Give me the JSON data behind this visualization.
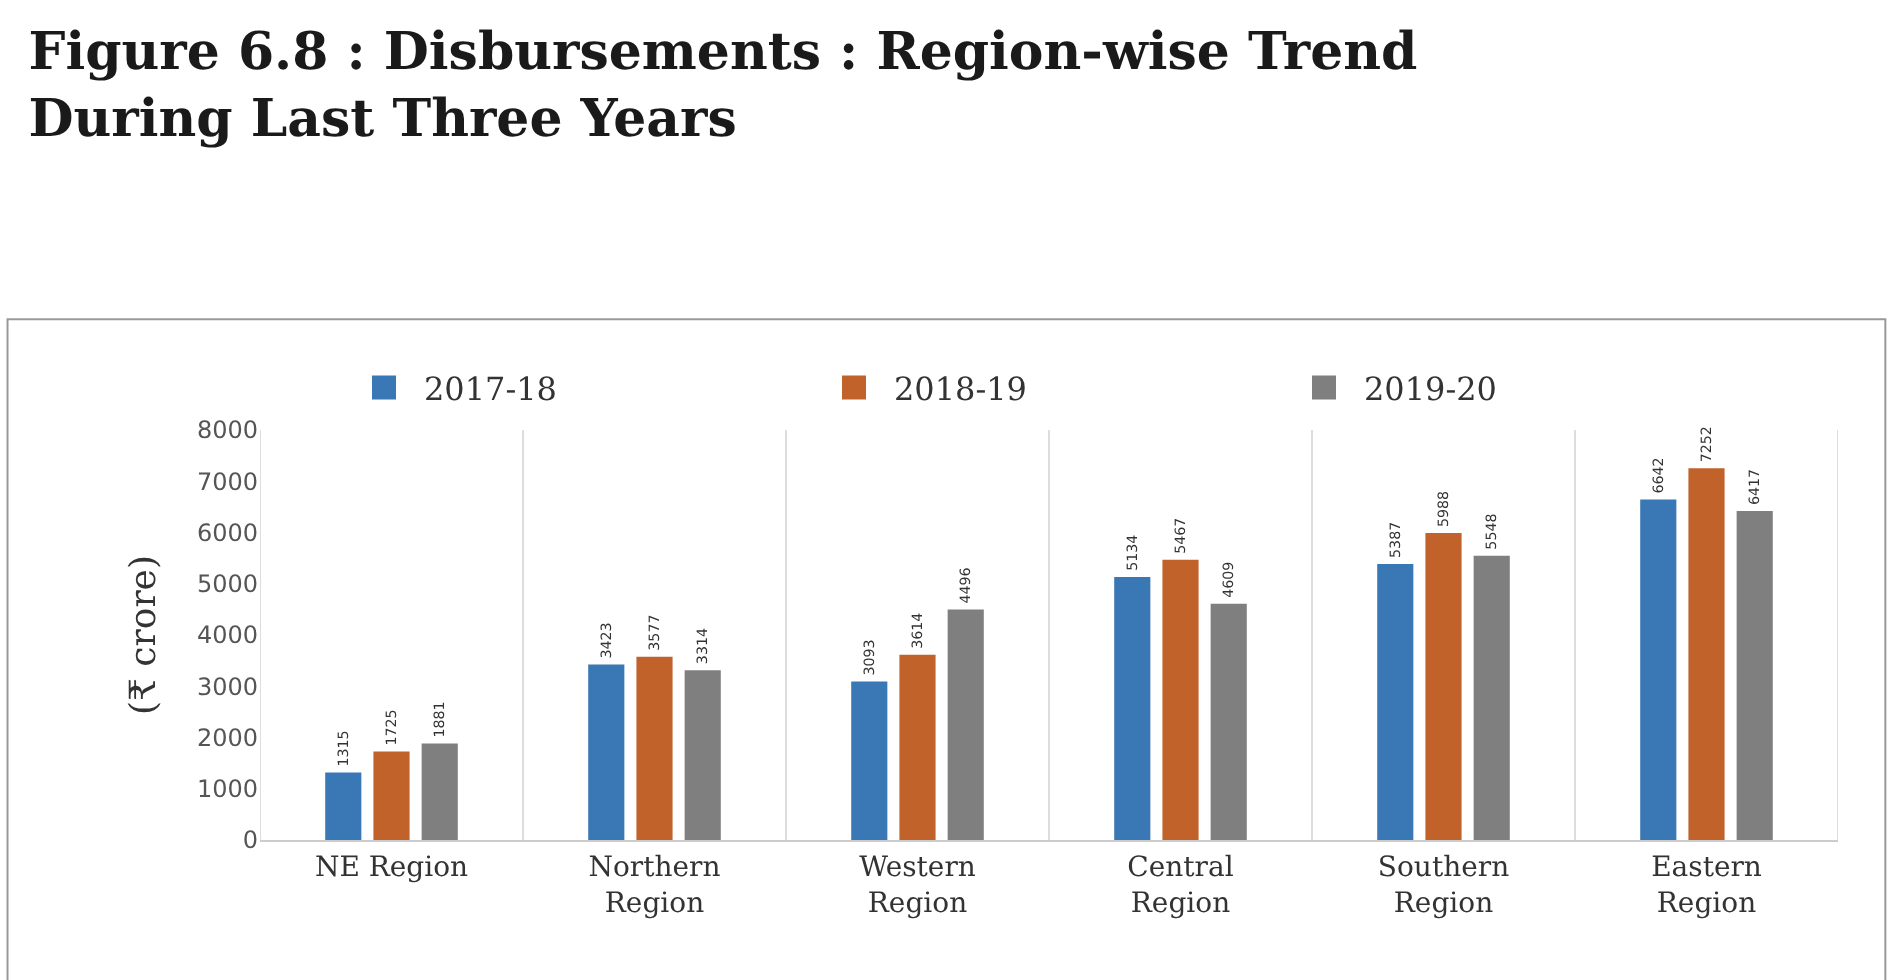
{
  "chart_data": {
    "type": "bar",
    "title": "Figure 6.8 : Disbursements : Region-wise Trend During Last Three Years",
    "ylabel": "(₹ crore)",
    "categories": [
      "NE Region",
      "Northern Region",
      "Western Region",
      "Central Region",
      "Southern Region",
      "Eastern Region"
    ],
    "series": [
      {
        "name": "2017-18",
        "color": "#3a78b5",
        "values": [
          1315,
          3423,
          3093,
          5134,
          5387,
          6642
        ]
      },
      {
        "name": "2018-19",
        "color": "#c0622a",
        "values": [
          1725,
          3577,
          3614,
          5467,
          5988,
          7252
        ]
      },
      {
        "name": "2019-20",
        "color": "#7f7f7f",
        "values": [
          1881,
          3314,
          4496,
          4609,
          5548,
          6417
        ]
      }
    ],
    "ylim": [
      0,
      8000
    ],
    "yticks": [
      0,
      1000,
      2000,
      3000,
      4000,
      5000,
      6000,
      7000,
      8000
    ],
    "data_labels": true,
    "grid": false,
    "legend": "top"
  }
}
